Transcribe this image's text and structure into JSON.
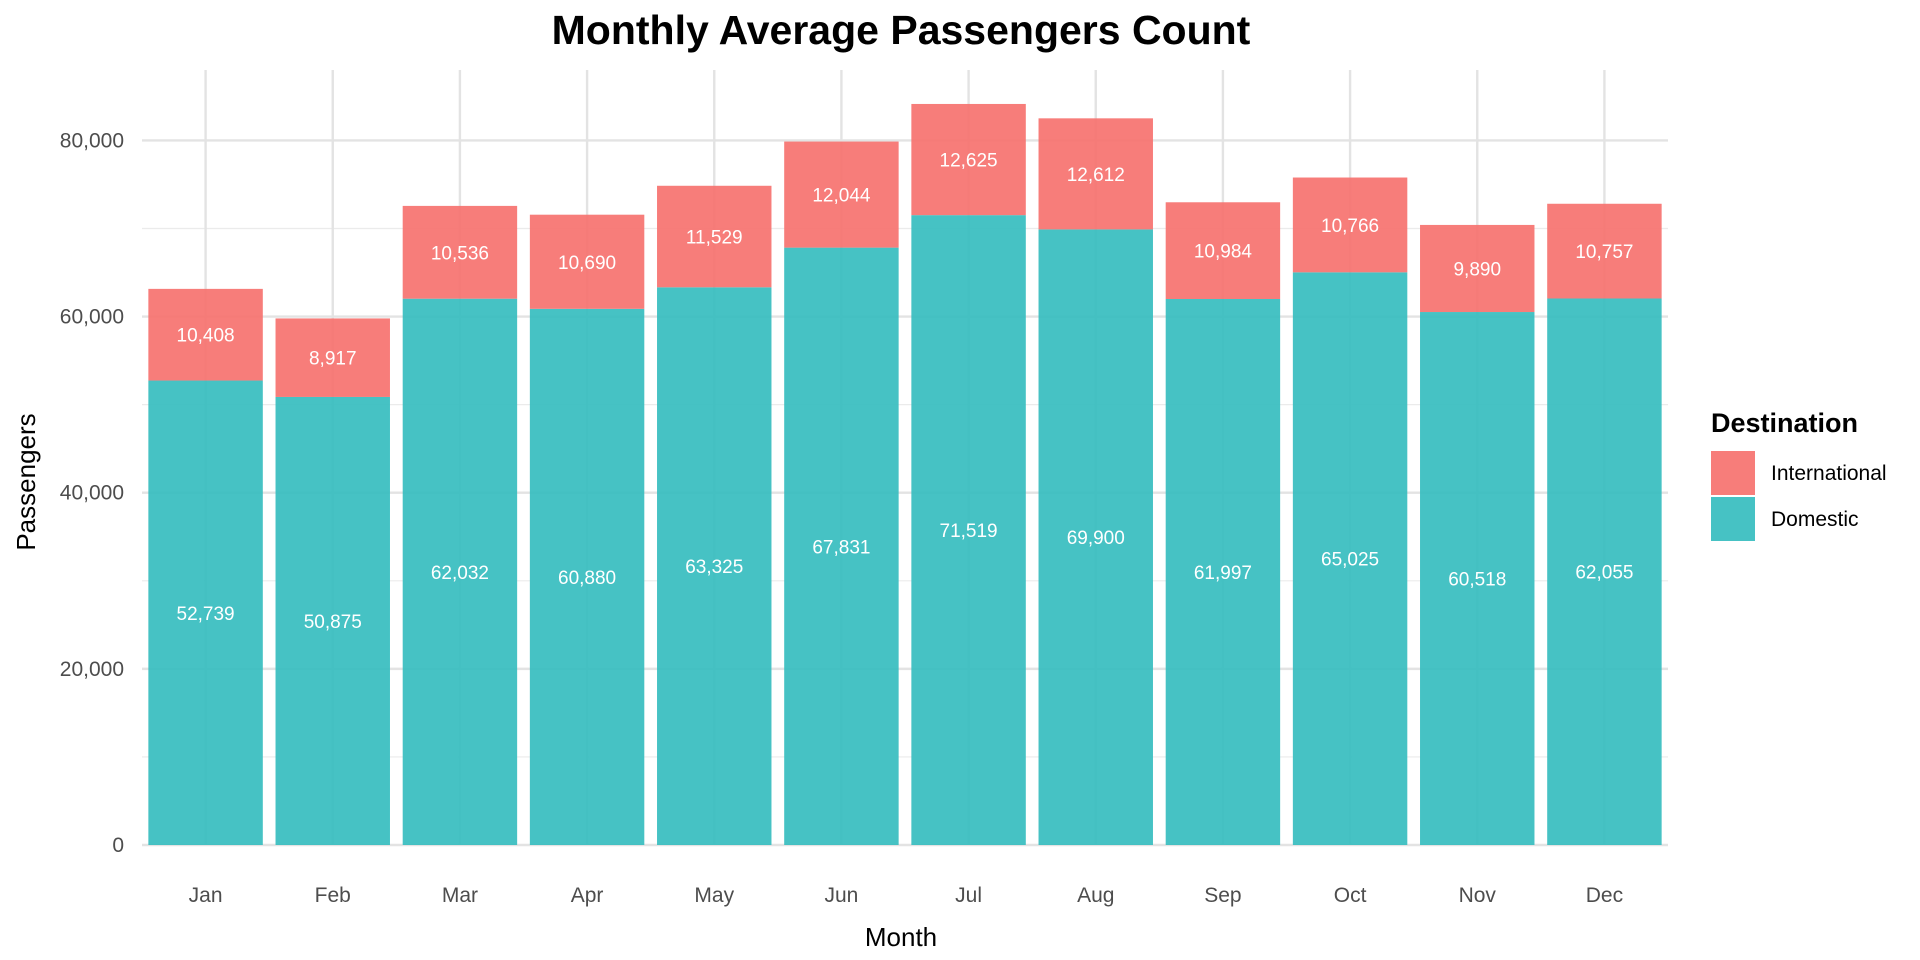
{
  "chart_data": {
    "type": "bar",
    "stacked": true,
    "title": "Monthly Average Passengers Count",
    "xlabel": "Month",
    "ylabel": "Passengers",
    "ylim": [
      0,
      88000
    ],
    "yticks": [
      0,
      20000,
      40000,
      60000,
      80000
    ],
    "ytick_labels": [
      "0",
      "20,000",
      "40,000",
      "60,000",
      "80,000"
    ],
    "grid": true,
    "categories": [
      "Jan",
      "Feb",
      "Mar",
      "Apr",
      "May",
      "Jun",
      "Jul",
      "Aug",
      "Sep",
      "Oct",
      "Nov",
      "Dec"
    ],
    "series": [
      {
        "name": "Domestic",
        "color": "#38BDC0",
        "values": [
          52739,
          50875,
          62032,
          60880,
          63325,
          67831,
          71519,
          69900,
          61997,
          65025,
          60518,
          62055
        ],
        "labels": [
          "52,739",
          "50,875",
          "62,032",
          "60,880",
          "63,325",
          "67,831",
          "71,519",
          "69,900",
          "61,997",
          "65,025",
          "60,518",
          "62,055"
        ]
      },
      {
        "name": "International",
        "color": "#F67370",
        "values": [
          10408,
          8917,
          10536,
          10690,
          11529,
          12044,
          12625,
          12612,
          10984,
          10766,
          9890,
          10757
        ],
        "labels": [
          "10,408",
          "8,917",
          "10,536",
          "10,690",
          "11,529",
          "12,044",
          "12,625",
          "12,612",
          "10,984",
          "10,766",
          "9,890",
          "10,757"
        ]
      }
    ],
    "legend": {
      "title": "Destination",
      "position": "right",
      "entries": [
        "International",
        "Domestic"
      ]
    }
  }
}
